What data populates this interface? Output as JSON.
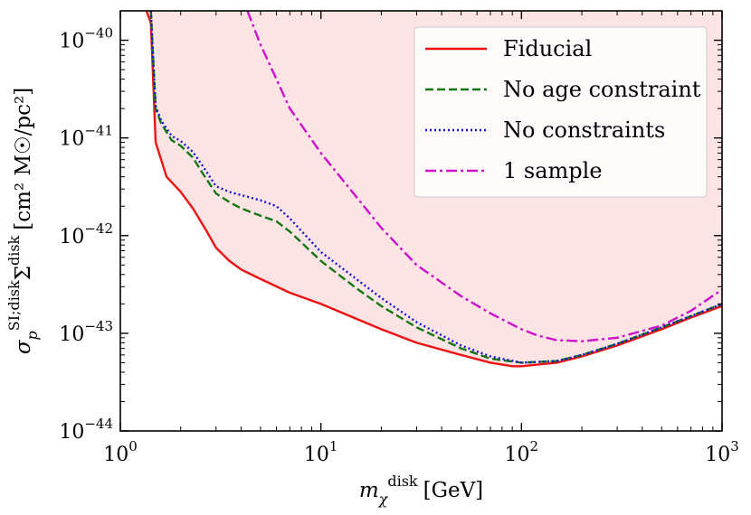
{
  "chart_data": {
    "type": "line",
    "title": "",
    "xlabel_parts": {
      "symbol": "m",
      "sub": "χ",
      "sup": "disk",
      "unit": "[GeV]"
    },
    "ylabel_parts": {
      "sigma": "σ",
      "sub": "p",
      "sup1": "SI;disk",
      "Sigma": "Σ",
      "sup2": "disk",
      "units": "[cm² M☉/pc²]"
    },
    "xscale": "log",
    "yscale": "log",
    "xlim": [
      1,
      1000
    ],
    "ylim": [
      1e-44,
      2e-40
    ],
    "x_ticks": [
      {
        "value": 1,
        "base": "10",
        "exp": "0"
      },
      {
        "value": 10,
        "base": "10",
        "exp": "1"
      },
      {
        "value": 100,
        "base": "10",
        "exp": "2"
      },
      {
        "value": 1000,
        "base": "10",
        "exp": "3"
      }
    ],
    "y_ticks": [
      {
        "value": 1e-44,
        "base": "10",
        "exp": "−44"
      },
      {
        "value": 1e-43,
        "base": "10",
        "exp": "−43"
      },
      {
        "value": 1e-42,
        "base": "10",
        "exp": "−42"
      },
      {
        "value": 1e-41,
        "base": "10",
        "exp": "−41"
      },
      {
        "value": 1e-40,
        "base": "10",
        "exp": "−40"
      }
    ],
    "grid": false,
    "legend_position": "top-right",
    "shaded_region": {
      "description_color": "#fde4e4",
      "above_series": "Fiducial"
    },
    "series": [
      {
        "name": "Fiducial",
        "color": "#ee1111",
        "style": "solid",
        "points": [
          [
            1.35,
            2e-40
          ],
          [
            1.42,
            1.5e-40
          ],
          [
            1.5,
            9e-42
          ],
          [
            1.7,
            4e-42
          ],
          [
            2.0,
            2.8e-42
          ],
          [
            2.3,
            1.9e-42
          ],
          [
            2.7,
            1.1e-42
          ],
          [
            3.0,
            7.5e-43
          ],
          [
            3.5,
            5.5e-43
          ],
          [
            4.0,
            4.5e-43
          ],
          [
            5.0,
            3.6e-43
          ],
          [
            7.0,
            2.6e-43
          ],
          [
            10,
            2e-43
          ],
          [
            20,
            1.1e-43
          ],
          [
            30,
            8e-44
          ],
          [
            50,
            6e-44
          ],
          [
            70,
            5e-44
          ],
          [
            90,
            4.6e-44
          ],
          [
            100,
            4.6e-44
          ],
          [
            150,
            5e-44
          ],
          [
            200,
            5.8e-44
          ],
          [
            300,
            7.5e-44
          ],
          [
            500,
            1.1e-43
          ],
          [
            700,
            1.45e-43
          ],
          [
            1000,
            1.9e-43
          ]
        ]
      },
      {
        "name": "No age constraint",
        "color": "#117711",
        "style": "dashed",
        "points": [
          [
            1.42,
            2e-40
          ],
          [
            1.45,
            8e-41
          ],
          [
            1.5,
            2e-41
          ],
          [
            1.6,
            1.4e-41
          ],
          [
            1.8,
            9.5e-42
          ],
          [
            2.0,
            8.3e-42
          ],
          [
            2.3,
            6.3e-42
          ],
          [
            2.6,
            4.2e-42
          ],
          [
            3.0,
            2.7e-42
          ],
          [
            3.5,
            2.2e-42
          ],
          [
            4.0,
            1.9e-42
          ],
          [
            5.0,
            1.6e-42
          ],
          [
            6.0,
            1.4e-42
          ],
          [
            7.0,
            1.1e-42
          ],
          [
            10,
            5.5e-43
          ],
          [
            15,
            2.9e-43
          ],
          [
            20,
            1.9e-43
          ],
          [
            30,
            1.15e-43
          ],
          [
            50,
            7e-44
          ],
          [
            70,
            5.5e-44
          ],
          [
            100,
            5e-44
          ],
          [
            150,
            5.2e-44
          ],
          [
            200,
            6e-44
          ],
          [
            300,
            7.8e-44
          ],
          [
            500,
            1.15e-43
          ],
          [
            700,
            1.5e-43
          ],
          [
            1000,
            2e-43
          ]
        ]
      },
      {
        "name": "No constraints",
        "color": "#1111dd",
        "style": "dotted",
        "points": [
          [
            1.42,
            2e-40
          ],
          [
            1.45,
            8e-41
          ],
          [
            1.5,
            2.1e-41
          ],
          [
            1.6,
            1.5e-41
          ],
          [
            1.8,
            1.05e-41
          ],
          [
            2.0,
            9.3e-42
          ],
          [
            2.3,
            7.2e-42
          ],
          [
            2.6,
            5e-42
          ],
          [
            3.0,
            3.2e-42
          ],
          [
            3.5,
            2.8e-42
          ],
          [
            4.0,
            2.6e-42
          ],
          [
            5.0,
            2.3e-42
          ],
          [
            6.0,
            2e-42
          ],
          [
            7.0,
            1.5e-42
          ],
          [
            10,
            6.8e-43
          ],
          [
            15,
            3.6e-43
          ],
          [
            20,
            2.3e-43
          ],
          [
            30,
            1.3e-43
          ],
          [
            50,
            7.5e-44
          ],
          [
            70,
            5.8e-44
          ],
          [
            100,
            5e-44
          ],
          [
            150,
            5.2e-44
          ],
          [
            200,
            6e-44
          ],
          [
            300,
            7.8e-44
          ],
          [
            500,
            1.15e-43
          ],
          [
            700,
            1.5e-43
          ],
          [
            1000,
            2e-43
          ]
        ]
      },
      {
        "name": "1 sample",
        "color": "#cc11cc",
        "style": "dashdot",
        "points": [
          [
            4.3,
            2e-40
          ],
          [
            5.0,
            9e-41
          ],
          [
            6.0,
            4e-41
          ],
          [
            7.0,
            2e-41
          ],
          [
            10,
            7e-42
          ],
          [
            15,
            2.5e-42
          ],
          [
            20,
            1.2e-42
          ],
          [
            30,
            5e-43
          ],
          [
            50,
            2.4e-43
          ],
          [
            70,
            1.6e-43
          ],
          [
            100,
            1.1e-43
          ],
          [
            120,
            9.5e-44
          ],
          [
            150,
            8.5e-44
          ],
          [
            200,
            8.3e-44
          ],
          [
            300,
            9e-44
          ],
          [
            500,
            1.2e-43
          ],
          [
            700,
            1.7e-43
          ],
          [
            1000,
            2.8e-43
          ]
        ]
      }
    ]
  }
}
